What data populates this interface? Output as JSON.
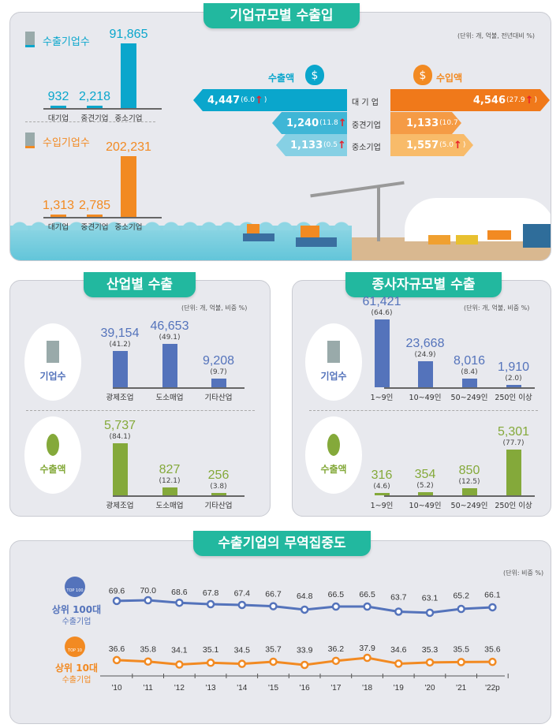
{
  "colors": {
    "teal": "#22b89f",
    "blue": "#0aa6cc",
    "orange": "#f28a22",
    "navy": "#5473bb",
    "green": "#84a93a"
  },
  "section1": {
    "title": "기업규모별 수출입",
    "unit": "(단위: 개, 억불, 전년대비 %)",
    "export_count_label": "수출기업수",
    "import_count_label": "수입기업수",
    "export_amount_label": "수출액",
    "import_amount_label": "수입액",
    "rows": [
      {
        "label": "대 기 업",
        "export": "4,447",
        "export_change": "(6.0",
        "import": "4,546",
        "import_change": "(27.9"
      },
      {
        "label": "중견기업",
        "export": "1,240",
        "export_change": "(11.8",
        "import": "1,133",
        "import_change": "(10.7"
      },
      {
        "label": "중소기업",
        "export": "1,133",
        "export_change": "(0.5",
        "import": "1,557",
        "import_change": "(5.0"
      }
    ],
    "up_arrow": "↑",
    "close_paren": ")"
  },
  "section2": {
    "title": "산업별 수출",
    "unit": "(단위: 개, 억불, 비중 %)",
    "count_label": "기업수",
    "amount_label": "수출액"
  },
  "section3": {
    "title": "종사자규모별 수출",
    "unit": "(단위: 개, 억불, 비중 %)",
    "count_label": "기업수",
    "amount_label": "수출액"
  },
  "section4": {
    "title": "수출기업의 무역집중도",
    "unit": "(단위: 비중 %)",
    "top100_badge": "TOP 100",
    "top100_label": "상위 100대",
    "top100_sub": "수출기업",
    "top10_badge": "TOP 10",
    "top10_label": "상위 10대",
    "top10_sub": "수출기업"
  },
  "chart_data": [
    {
      "type": "bar",
      "id": "export_firms",
      "categories": [
        "대기업",
        "중견기업",
        "중소기업"
      ],
      "values": [
        932,
        2218,
        91865
      ],
      "labels": [
        "932",
        "2,218",
        "91,865"
      ],
      "color": "#0aa6cc"
    },
    {
      "type": "bar",
      "id": "import_firms",
      "categories": [
        "대기업",
        "중견기업",
        "중소기업"
      ],
      "values": [
        1313,
        2785,
        202231
      ],
      "labels": [
        "1,313",
        "2,785",
        "202,231"
      ],
      "color": "#f28a22"
    },
    {
      "type": "bar",
      "id": "industry_firms",
      "categories": [
        "광제조업",
        "도소매업",
        "기타산업"
      ],
      "values": [
        39154,
        46653,
        9208
      ],
      "labels": [
        "39,154",
        "46,653",
        "9,208"
      ],
      "shares": [
        "(41.2)",
        "(49.1)",
        "(9.7)"
      ],
      "color": "#5473bb"
    },
    {
      "type": "bar",
      "id": "industry_exports",
      "categories": [
        "광제조업",
        "도소매업",
        "기타산업"
      ],
      "values": [
        5737,
        827,
        256
      ],
      "labels": [
        "5,737",
        "827",
        "256"
      ],
      "shares": [
        "(84.1)",
        "(12.1)",
        "(3.8)"
      ],
      "color": "#84a93a"
    },
    {
      "type": "bar",
      "id": "size_firms",
      "categories": [
        "1~9인",
        "10~49인",
        "50~249인",
        "250인 이상"
      ],
      "values": [
        61421,
        23668,
        8016,
        1910
      ],
      "labels": [
        "61,421",
        "23,668",
        "8,016",
        "1,910"
      ],
      "shares": [
        "(64.6)",
        "(24.9)",
        "(8.4)",
        "(2.0)"
      ],
      "color": "#5473bb"
    },
    {
      "type": "bar",
      "id": "size_exports",
      "categories": [
        "1~9인",
        "10~49인",
        "50~249인",
        "250인 이상"
      ],
      "values": [
        316,
        354,
        850,
        5301
      ],
      "labels": [
        "316",
        "354",
        "850",
        "5,301"
      ],
      "shares": [
        "(4.6)",
        "(5.2)",
        "(12.5)",
        "(77.7)"
      ],
      "color": "#84a93a"
    },
    {
      "type": "line",
      "id": "concentration",
      "x": [
        "'10",
        "'11",
        "'12",
        "'13",
        "'14",
        "'15",
        "'16",
        "'17",
        "'18",
        "'19",
        "'20",
        "'21",
        "'22p"
      ],
      "series": [
        {
          "name": "상위 100대 수출기업",
          "values": [
            69.6,
            70.0,
            68.6,
            67.8,
            67.4,
            66.7,
            64.8,
            66.5,
            66.5,
            63.7,
            63.1,
            65.2,
            66.1
          ],
          "color": "#5473bb"
        },
        {
          "name": "상위 10대 수출기업",
          "values": [
            36.6,
            35.8,
            34.1,
            35.1,
            34.5,
            35.7,
            33.9,
            36.2,
            37.9,
            34.6,
            35.3,
            35.5,
            35.6
          ],
          "color": "#f28a22"
        }
      ]
    }
  ]
}
